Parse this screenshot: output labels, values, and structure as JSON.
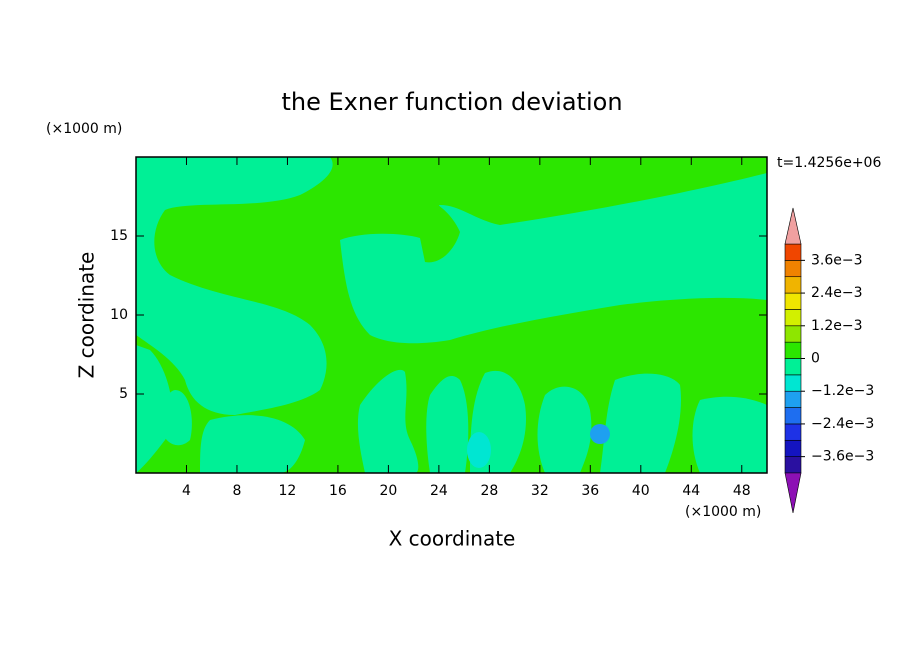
{
  "chart_data": {
    "type": "contour",
    "title": "the Exner function deviation",
    "xlabel": "X coordinate",
    "ylabel": "Z coordinate",
    "x_unit": "(×1000 m)",
    "y_unit": "(×1000 m)",
    "time_label": "t=1.4256e+06",
    "xlim": [
      0,
      50
    ],
    "xticks": [
      4,
      8,
      12,
      16,
      20,
      24,
      28,
      32,
      36,
      40,
      44,
      48
    ],
    "ylim": [
      0,
      20
    ],
    "yticks": [
      5,
      10,
      15
    ],
    "colorbar": {
      "levels": [
        -0.0042,
        -0.0036,
        -0.003,
        -0.0024,
        -0.0018,
        -0.0012,
        -0.0006,
        0,
        0.0006,
        0.0012,
        0.0018,
        0.0024,
        0.003,
        0.0036,
        0.0042
      ],
      "colors": [
        "#5a1aa0",
        "#2a10a0",
        "#1414c0",
        "#1e32e6",
        "#1e6ef0",
        "#1ea0f0",
        "#00e6d2",
        "#00f096",
        "#2ce600",
        "#8ee600",
        "#d2f000",
        "#f0e600",
        "#f0b400",
        "#f08200",
        "#f04600",
        "#f01e00"
      ],
      "under_color": "#8c10b4",
      "over_color": "#f0a0a0",
      "ticks": [
        {
          "value": -0.0036,
          "label": "−3.6e−3"
        },
        {
          "value": -0.0024,
          "label": "−2.4e−3"
        },
        {
          "value": -0.0012,
          "label": "−1.2e−3"
        },
        0,
        {
          "value": 0.0012,
          "label": "1.2e−3"
        },
        {
          "value": 0.0024,
          "label": "2.4e−3"
        },
        {
          "value": 0.0036,
          "label": "3.6e−3"
        }
      ]
    }
  }
}
